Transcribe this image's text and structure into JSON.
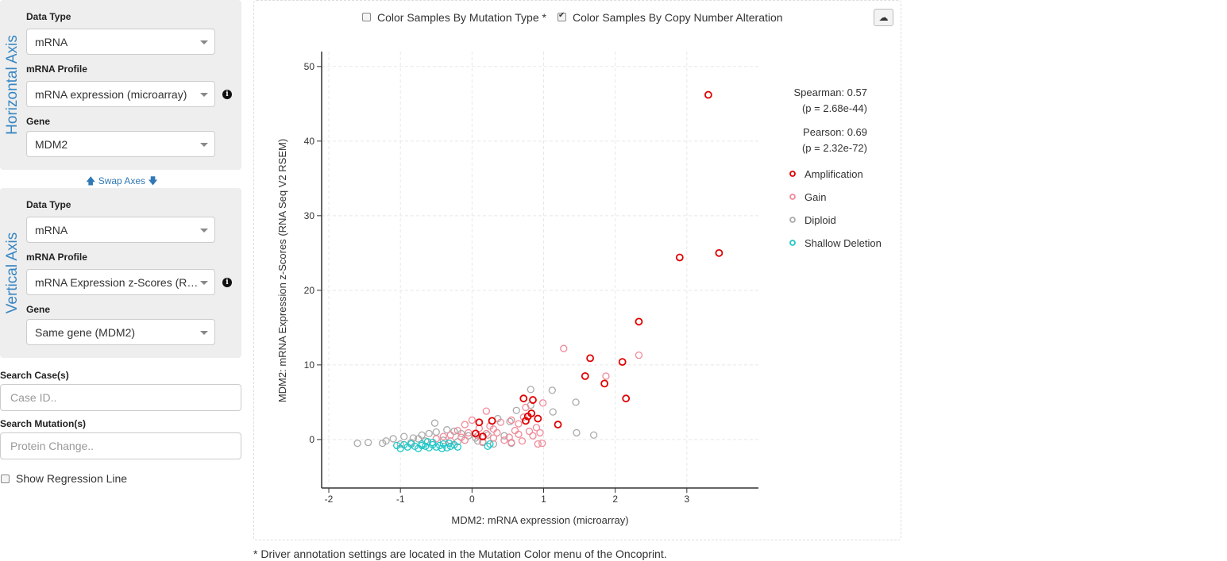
{
  "horizontal_axis": {
    "title": "Horizontal Axis",
    "data_type_label": "Data Type",
    "data_type_value": "mRNA",
    "profile_label": "mRNA Profile",
    "profile_value": "mRNA expression (microarray)",
    "gene_label": "Gene",
    "gene_value": "MDM2"
  },
  "swap_axes_label": "Swap Axes",
  "vertical_axis": {
    "title": "Vertical Axis",
    "data_type_label": "Data Type",
    "data_type_value": "mRNA",
    "profile_label": "mRNA Profile",
    "profile_value": "mRNA Expression z-Scores (RN...",
    "gene_label": "Gene",
    "gene_value": "Same gene (MDM2)"
  },
  "search_cases": {
    "label": "Search Case(s)",
    "placeholder": "Case ID.."
  },
  "search_mutations": {
    "label": "Search Mutation(s)",
    "placeholder": "Protein Change.."
  },
  "regression_label": "Show Regression Line",
  "color_by_mutation_label": "Color Samples By Mutation Type *",
  "color_by_cna_label": "Color Samples By Copy Number Alteration",
  "footnote": "* Driver annotation settings are located in the Mutation Color menu of the Oncoprint.",
  "stats": {
    "spearman": "Spearman: 0.57",
    "spearman_p": "(p = 2.68e-44)",
    "pearson": "Pearson: 0.69",
    "pearson_p": "(p = 2.32e-72)"
  },
  "icons": {
    "download": "cloud-download-icon",
    "info": "info-circle-icon",
    "swap_up": "arrow-up-icon",
    "swap_down": "arrow-down-icon"
  },
  "chart_data": {
    "type": "scatter",
    "xlabel": "MDM2: mRNA expression (microarray)",
    "ylabel": "MDM2: mRNA Expression z-Scores (RNA Seq V2 RSEM)",
    "xlim": [
      -2.1,
      4.0
    ],
    "ylim": [
      -6.5,
      52
    ],
    "xticks": [
      -2,
      -1,
      0,
      1,
      2,
      3
    ],
    "yticks": [
      0,
      10,
      20,
      30,
      40,
      50
    ],
    "grid": true,
    "legend_position": "right",
    "series": [
      {
        "name": "Amplification",
        "color": "#e00000",
        "points": [
          [
            3.3,
            46.2
          ],
          [
            2.9,
            24.4
          ],
          [
            3.45,
            25.0
          ],
          [
            2.33,
            15.8
          ],
          [
            1.65,
            10.9
          ],
          [
            2.1,
            10.4
          ],
          [
            1.58,
            8.5
          ],
          [
            1.85,
            7.5
          ],
          [
            2.15,
            5.5
          ],
          [
            0.72,
            5.5
          ],
          [
            0.85,
            5.3
          ],
          [
            0.83,
            3.5
          ],
          [
            0.78,
            3.1
          ],
          [
            0.92,
            2.8
          ],
          [
            0.28,
            2.5
          ],
          [
            0.1,
            2.3
          ],
          [
            0.75,
            2.5
          ],
          [
            1.2,
            2.0
          ],
          [
            0.05,
            0.8
          ],
          [
            0.15,
            0.4
          ]
        ]
      },
      {
        "name": "Gain",
        "color": "#f08a99",
        "points": [
          [
            1.28,
            12.2
          ],
          [
            2.33,
            11.3
          ],
          [
            1.87,
            8.5
          ],
          [
            0.99,
            4.9
          ],
          [
            0.2,
            3.8
          ],
          [
            0.75,
            4.3
          ],
          [
            0.55,
            2.6
          ],
          [
            0.4,
            2.3
          ],
          [
            0.65,
            2.1
          ],
          [
            0.9,
            1.6
          ],
          [
            0.3,
            1.4
          ],
          [
            0.95,
            0.9
          ],
          [
            0.6,
            1.2
          ],
          [
            0.2,
            0.8
          ],
          [
            0.85,
            0.5
          ],
          [
            0.52,
            0.3
          ],
          [
            0.3,
            0.2
          ],
          [
            0.1,
            1.5
          ],
          [
            0.0,
            2.6
          ],
          [
            -0.1,
            2.0
          ],
          [
            -0.2,
            1.2
          ],
          [
            -0.3,
            0.6
          ],
          [
            -0.15,
            0.3
          ],
          [
            -0.05,
            0.9
          ],
          [
            0.08,
            0.5
          ],
          [
            0.45,
            -0.1
          ],
          [
            0.7,
            -0.2
          ],
          [
            0.92,
            -0.6
          ],
          [
            0.98,
            -0.5
          ],
          [
            0.65,
            0.7
          ],
          [
            0.8,
            1.1
          ],
          [
            0.25,
            1.8
          ],
          [
            -0.4,
            0.4
          ],
          [
            -0.5,
            0.1
          ],
          [
            -0.3,
            -0.2
          ],
          [
            0.15,
            -0.3
          ],
          [
            0.55,
            -0.4
          ],
          [
            -0.1,
            -0.1
          ],
          [
            0.35,
            0.9
          ],
          [
            0.72,
            3.0
          ]
        ]
      },
      {
        "name": "Diploid",
        "color": "#aaaaaa",
        "points": [
          [
            0.82,
            6.7
          ],
          [
            1.12,
            6.6
          ],
          [
            1.45,
            5.0
          ],
          [
            1.13,
            3.7
          ],
          [
            0.62,
            3.9
          ],
          [
            0.82,
            4.6
          ],
          [
            0.53,
            2.4
          ],
          [
            0.36,
            2.8
          ],
          [
            1.46,
            0.9
          ],
          [
            1.7,
            0.6
          ],
          [
            0.55,
            -0.5
          ],
          [
            0.45,
            0.5
          ],
          [
            -1.6,
            -0.5
          ],
          [
            -1.45,
            -0.4
          ],
          [
            -1.25,
            -0.5
          ],
          [
            -1.2,
            -0.2
          ],
          [
            -1.1,
            0.1
          ],
          [
            -0.95,
            0.4
          ],
          [
            -0.82,
            0.2
          ],
          [
            -0.7,
            0.6
          ],
          [
            -0.6,
            0.8
          ],
          [
            -0.5,
            1.0
          ],
          [
            -0.52,
            2.2
          ],
          [
            -0.35,
            1.3
          ],
          [
            -0.25,
            1.1
          ],
          [
            -0.15,
            0.8
          ],
          [
            -0.05,
            0.5
          ],
          [
            0.05,
            0.2
          ],
          [
            0.15,
            -0.4
          ],
          [
            0.3,
            -0.6
          ],
          [
            -0.2,
            -0.3
          ],
          [
            -0.4,
            -0.1
          ],
          [
            -0.65,
            -0.2
          ],
          [
            -0.85,
            -0.4
          ],
          [
            -1.0,
            -0.6
          ],
          [
            -0.75,
            0.1
          ],
          [
            0.22,
            0.6
          ],
          [
            0.08,
            -0.2
          ]
        ]
      },
      {
        "name": "Shallow Deletion",
        "color": "#22c7c7",
        "points": [
          [
            -1.05,
            -0.8
          ],
          [
            -1.0,
            -1.2
          ],
          [
            -0.95,
            -0.7
          ],
          [
            -0.9,
            -1.0
          ],
          [
            -0.8,
            -0.9
          ],
          [
            -0.75,
            -1.2
          ],
          [
            -0.7,
            -0.6
          ],
          [
            -0.65,
            -0.9
          ],
          [
            -0.6,
            -1.1
          ],
          [
            -0.55,
            -0.7
          ],
          [
            -0.5,
            -1.0
          ],
          [
            -0.45,
            -0.8
          ],
          [
            -0.4,
            -0.6
          ],
          [
            -0.35,
            -1.1
          ],
          [
            -0.3,
            -0.9
          ],
          [
            -0.25,
            -0.7
          ],
          [
            -0.2,
            -1.0
          ],
          [
            -0.32,
            -0.5
          ],
          [
            -0.55,
            -0.4
          ],
          [
            0.22,
            -0.9
          ],
          [
            0.25,
            -0.6
          ],
          [
            -0.85,
            -0.6
          ],
          [
            -0.62,
            -0.3
          ],
          [
            -0.42,
            -1.2
          ],
          [
            -0.7,
            -0.8
          ]
        ]
      }
    ]
  }
}
